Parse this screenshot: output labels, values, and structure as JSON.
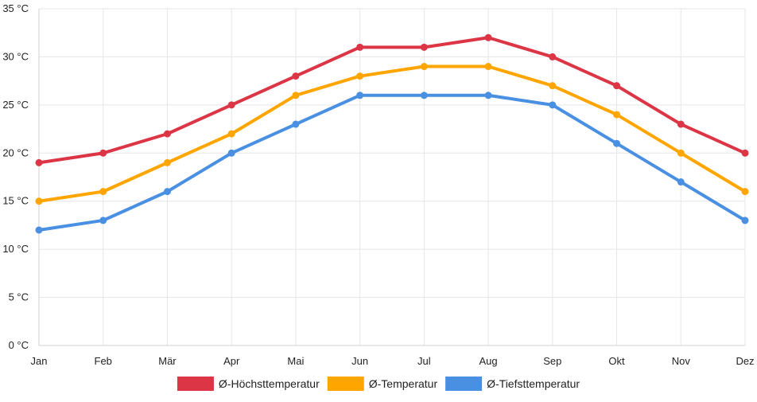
{
  "chart_data": {
    "type": "line",
    "title": "",
    "xlabel": "",
    "ylabel": "",
    "unit": "°C",
    "categories": [
      "Jan",
      "Feb",
      "Mär",
      "Apr",
      "Mai",
      "Jun",
      "Jul",
      "Aug",
      "Sep",
      "Okt",
      "Nov",
      "Dez"
    ],
    "ylim": [
      0,
      35
    ],
    "yticks": [
      0,
      5,
      10,
      15,
      20,
      25,
      30,
      35
    ],
    "ytick_labels": [
      "0 °C",
      "5 °C",
      "10 °C",
      "15 °C",
      "20 °C",
      "25 °C",
      "30 °C",
      "35 °C"
    ],
    "grid": true,
    "legend_position": "bottom-center",
    "series": [
      {
        "name": "Ø-Höchsttemperatur",
        "color": "#dc3545",
        "values": [
          19,
          20,
          22,
          25,
          28,
          31,
          31,
          32,
          30,
          27,
          23,
          20
        ]
      },
      {
        "name": "Ø-Temperatur",
        "color": "#ffa500",
        "values": [
          15,
          16,
          19,
          22,
          26,
          28,
          29,
          29,
          27,
          24,
          20,
          16
        ]
      },
      {
        "name": "Ø-Tiefsttemperatur",
        "color": "#4a90e2",
        "values": [
          12,
          13,
          16,
          20,
          23,
          26,
          26,
          26,
          25,
          21,
          17,
          13
        ]
      }
    ]
  }
}
